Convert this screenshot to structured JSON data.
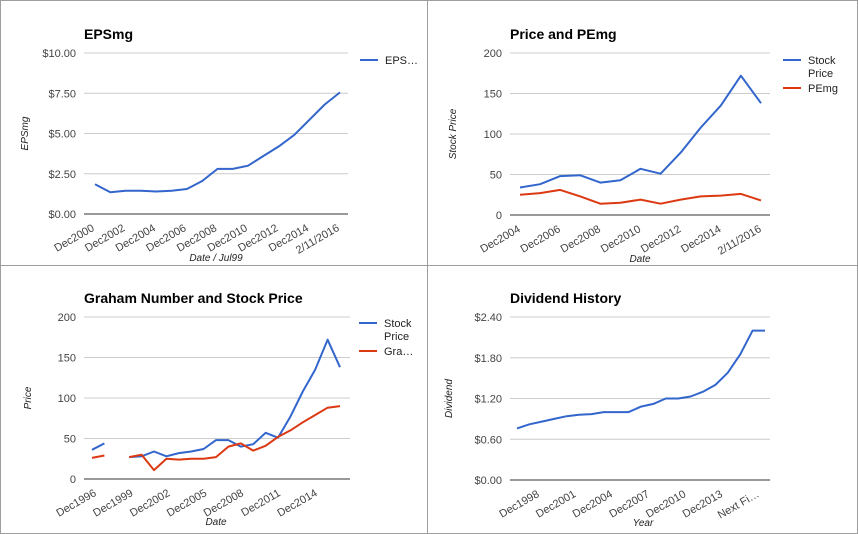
{
  "colors": {
    "blue": "#3366cc",
    "red": "#dc3912",
    "grid": "#cccccc",
    "axis": "#333333",
    "text": "#444444"
  },
  "chart_data": [
    {
      "type": "line",
      "title": "EPSmg",
      "xlabel": "Date / Jul99",
      "ylabel": "EPSmg",
      "ylim": [
        0,
        10
      ],
      "yticks": [
        "$0.00",
        "$2.50",
        "$5.00",
        "$7.50",
        "$10.00"
      ],
      "ytick_values": [
        0,
        2.5,
        5,
        7.5,
        10
      ],
      "xtick_labels": [
        "Dec2000",
        "Dec2002",
        "Dec2004",
        "Dec2006",
        "Dec2008",
        "Dec2010",
        "Dec2012",
        "Dec2014",
        "2/11/2016"
      ],
      "legend": [
        "EPS…"
      ],
      "series": [
        {
          "name": "EPSmg",
          "color": "blue",
          "values": [
            1.85,
            1.35,
            1.45,
            1.45,
            1.4,
            1.45,
            1.55,
            2.05,
            2.8,
            2.8,
            3.0,
            3.6,
            4.2,
            4.9,
            5.85,
            6.8,
            7.55
          ]
        }
      ]
    },
    {
      "type": "line",
      "title": "Price and PEmg",
      "xlabel": "Date",
      "ylabel": "Stock Price",
      "ylim": [
        0,
        200
      ],
      "yticks": [
        "0",
        "50",
        "100",
        "150",
        "200"
      ],
      "ytick_values": [
        0,
        50,
        100,
        150,
        200
      ],
      "xtick_labels": [
        "Dec2004",
        "Dec2006",
        "Dec2008",
        "Dec2010",
        "Dec2012",
        "Dec2014",
        "2/11/2016"
      ],
      "legend": [
        "Stock Price",
        "PEmg"
      ],
      "series": [
        {
          "name": "Stock Price",
          "color": "blue",
          "values": [
            34,
            38,
            48,
            49,
            40,
            43,
            57,
            51,
            77,
            108,
            135,
            172,
            138
          ]
        },
        {
          "name": "PEmg",
          "color": "red",
          "values": [
            25,
            27,
            31,
            23,
            14,
            15,
            19,
            14,
            19,
            23,
            24,
            26,
            18
          ]
        }
      ]
    },
    {
      "type": "line",
      "title": "Graham Number and Stock Price",
      "xlabel": "Date",
      "ylabel": "Price",
      "ylim": [
        0,
        200
      ],
      "yticks": [
        "0",
        "50",
        "100",
        "150",
        "200"
      ],
      "ytick_values": [
        0,
        50,
        100,
        150,
        200
      ],
      "xtick_labels": [
        "Dec1996",
        "Dec1999",
        "Dec2002",
        "Dec2005",
        "Dec2008",
        "Dec2011",
        "Dec2014"
      ],
      "legend": [
        "Stock Price",
        "Gra…"
      ],
      "series": [
        {
          "name": "Stock Price",
          "color": "blue",
          "values": [
            36,
            44,
            null,
            27,
            28,
            34,
            28,
            32,
            34,
            37,
            48,
            48,
            40,
            43,
            57,
            51,
            77,
            108,
            135,
            172,
            138
          ]
        },
        {
          "name": "Graham Number",
          "color": "red",
          "values": [
            26,
            29,
            null,
            27,
            30,
            11,
            25,
            24,
            25,
            25,
            27,
            40,
            44,
            35,
            41,
            52,
            60,
            70,
            79,
            88,
            90
          ]
        }
      ]
    },
    {
      "type": "line",
      "title": "Dividend History",
      "xlabel": "Year",
      "ylabel": "Dividend",
      "ylim": [
        0,
        2.4
      ],
      "yticks": [
        "$0.00",
        "$0.60",
        "$1.20",
        "$1.80",
        "$2.40"
      ],
      "ytick_values": [
        0,
        0.6,
        1.2,
        1.8,
        2.4
      ],
      "xtick_labels": [
        "Dec1998",
        "Dec2001",
        "Dec2004",
        "Dec2007",
        "Dec2010",
        "Dec2013",
        "Next Fi…"
      ],
      "legend": [],
      "series": [
        {
          "name": "Dividend",
          "color": "blue",
          "values": [
            0.76,
            0.82,
            0.86,
            0.9,
            0.94,
            0.96,
            0.97,
            1.0,
            1.0,
            1.0,
            1.08,
            1.12,
            1.2,
            1.2,
            1.23,
            1.3,
            1.4,
            1.58,
            1.85,
            2.2,
            2.2
          ]
        }
      ]
    }
  ]
}
